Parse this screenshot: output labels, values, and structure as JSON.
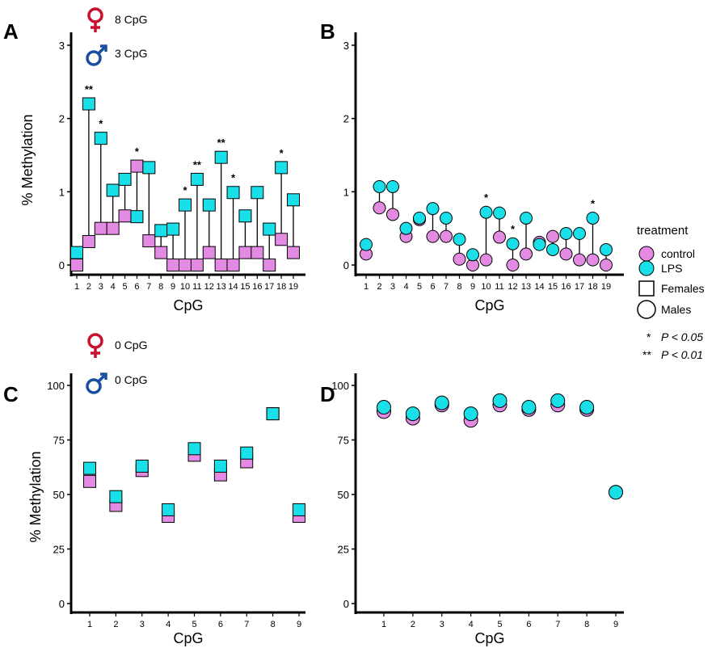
{
  "colors": {
    "control": "#e38ae3",
    "lps": "#19dfe8",
    "female_symbol": "#c8102e",
    "male_symbol": "#1a4fa0"
  },
  "panels": [
    {
      "letter": "A",
      "female_label": "8 CpG",
      "male_label": "3 CpG"
    },
    {
      "letter": "B"
    },
    {
      "letter": "C",
      "female_label": "0 CpG",
      "male_label": "0 CpG"
    },
    {
      "letter": "D"
    }
  ],
  "legend": {
    "title": "treatment",
    "control": "control",
    "lps": "LPS",
    "females": "Females",
    "males": "Males",
    "sig1_marker": "*",
    "sig1_text": "P < 0.05",
    "sig2_marker": "**",
    "sig2_text": "P < 0.01"
  },
  "chart_data": [
    {
      "panel": "A",
      "type": "scatter",
      "marker": "square",
      "xlabel": "CpG",
      "ylabel": "% Methylation",
      "ylim": [
        0,
        3
      ],
      "yticks": [
        "0",
        "1",
        "2",
        "3"
      ],
      "categories": [
        "1",
        "2",
        "3",
        "4",
        "5",
        "6",
        "7",
        "8",
        "9",
        "10",
        "11",
        "12",
        "13",
        "14",
        "15",
        "16",
        "17",
        "18",
        "19"
      ],
      "series": [
        {
          "name": "control",
          "values": [
            0.0,
            0.32,
            0.5,
            0.5,
            0.67,
            1.35,
            0.33,
            0.17,
            0.0,
            0.0,
            0.0,
            0.17,
            0.0,
            0.0,
            0.17,
            0.17,
            0.0,
            0.35,
            0.17
          ]
        },
        {
          "name": "LPS",
          "values": [
            0.17,
            2.2,
            1.73,
            1.02,
            1.17,
            0.66,
            1.33,
            0.47,
            0.49,
            0.82,
            1.17,
            0.82,
            1.47,
            0.99,
            0.67,
            0.99,
            0.49,
            1.33,
            0.89
          ]
        }
      ],
      "significance": [
        "",
        "**",
        "*",
        "",
        "",
        "*",
        "",
        "",
        "",
        "*",
        "**",
        "",
        "**",
        "*",
        "",
        "",
        "",
        "*",
        ""
      ]
    },
    {
      "panel": "B",
      "type": "scatter",
      "marker": "circle",
      "xlabel": "CpG",
      "ylabel": "",
      "ylim": [
        0,
        3
      ],
      "yticks": [
        "0",
        "1",
        "2",
        "3"
      ],
      "categories": [
        "1",
        "2",
        "3",
        "4",
        "5",
        "6",
        "7",
        "8",
        "9",
        "10",
        "11",
        "12",
        "13",
        "14",
        "15",
        "16",
        "17",
        "18",
        "19"
      ],
      "series": [
        {
          "name": "control",
          "values": [
            0.15,
            0.78,
            0.69,
            0.39,
            0.62,
            0.39,
            0.39,
            0.08,
            0.0,
            0.07,
            0.38,
            0.0,
            0.15,
            0.31,
            0.39,
            0.15,
            0.07,
            0.07,
            0.0
          ]
        },
        {
          "name": "LPS",
          "values": [
            0.28,
            1.07,
            1.07,
            0.5,
            0.64,
            0.77,
            0.64,
            0.35,
            0.14,
            0.72,
            0.71,
            0.29,
            0.64,
            0.28,
            0.21,
            0.43,
            0.43,
            0.64,
            0.21
          ]
        }
      ],
      "significance": [
        "",
        "",
        "",
        "",
        "",
        "",
        "",
        "",
        "",
        "*",
        "",
        "*",
        "",
        "",
        "",
        "",
        "",
        "*",
        ""
      ]
    },
    {
      "panel": "C",
      "type": "scatter",
      "marker": "square",
      "xlabel": "CpG",
      "ylabel": "% Methylation",
      "ylim": [
        0,
        100
      ],
      "yticks": [
        "0",
        "25",
        "50",
        "75",
        "100"
      ],
      "categories": [
        "1",
        "2",
        "3",
        "4",
        "5",
        "6",
        "7",
        "8",
        "9"
      ],
      "series": [
        {
          "name": "control",
          "values": [
            56,
            45,
            61,
            40,
            68,
            59,
            65,
            87,
            40
          ]
        },
        {
          "name": "LPS",
          "values": [
            62,
            49,
            63,
            43,
            71,
            63,
            69,
            87,
            43
          ]
        }
      ]
    },
    {
      "panel": "D",
      "type": "scatter",
      "marker": "circle",
      "xlabel": "CpG",
      "ylabel": "",
      "ylim": [
        0,
        100
      ],
      "yticks": [
        "0",
        "25",
        "50",
        "75",
        "100"
      ],
      "categories": [
        "1",
        "2",
        "3",
        "4",
        "5",
        "6",
        "7",
        "8",
        "9"
      ],
      "series": [
        {
          "name": "control",
          "values": [
            88,
            85,
            91,
            84,
            91,
            89,
            91,
            89,
            51
          ]
        },
        {
          "name": "LPS",
          "values": [
            90,
            87,
            92,
            87,
            93,
            90,
            93,
            90,
            51
          ]
        }
      ]
    }
  ]
}
